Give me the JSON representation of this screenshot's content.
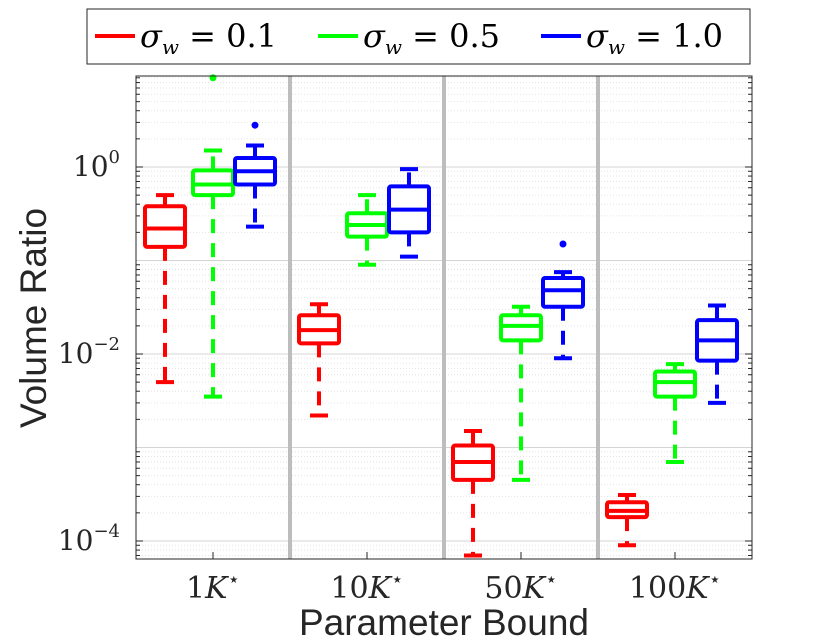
{
  "chart_data": {
    "type": "box",
    "title": "",
    "xlabel": "Parameter Bound",
    "ylabel": "Volume Ratio",
    "yscale": "log",
    "ylim": [
      6e-05,
      10
    ],
    "yticks": [
      {
        "value": 1,
        "base": "10",
        "exp": "0"
      },
      {
        "value": 0.01,
        "base": "10",
        "exp": "−2"
      },
      {
        "value": 0.0001,
        "base": "10",
        "exp": "−4"
      }
    ],
    "categories": [
      {
        "label": "1",
        "sym": "K",
        "sup": "⋆"
      },
      {
        "label": "10",
        "sym": "K",
        "sup": "⋆"
      },
      {
        "label": "50",
        "sym": "K",
        "sup": "⋆"
      },
      {
        "label": "100",
        "sym": "K",
        "sup": "⋆"
      }
    ],
    "legend_position": "top",
    "series": [
      {
        "name": "σw = 0.1",
        "sigma": "σ",
        "sub": "w",
        "eq": "= 0.1",
        "color": "#ff0000",
        "boxes": [
          {
            "whislo": 0.005,
            "q1": 0.14,
            "med": 0.22,
            "q3": 0.38,
            "whishi": 0.5,
            "fliers": []
          },
          {
            "whislo": 0.0022,
            "q1": 0.013,
            "med": 0.018,
            "q3": 0.026,
            "whishi": 0.034,
            "fliers": []
          },
          {
            "whislo": 7e-05,
            "q1": 0.00045,
            "med": 0.0007,
            "q3": 0.00105,
            "whishi": 0.0015,
            "fliers": []
          },
          {
            "whislo": 9e-05,
            "q1": 0.00018,
            "med": 0.00021,
            "q3": 0.00026,
            "whishi": 0.00031,
            "fliers": []
          }
        ]
      },
      {
        "name": "σw = 0.5",
        "sigma": "σ",
        "sub": "w",
        "eq": "= 0.5",
        "color": "#00ff00",
        "boxes": [
          {
            "whislo": 0.0035,
            "q1": 0.5,
            "med": 0.65,
            "q3": 0.92,
            "whishi": 1.5,
            "fliers": [
              9
            ]
          },
          {
            "whislo": 0.09,
            "q1": 0.18,
            "med": 0.24,
            "q3": 0.32,
            "whishi": 0.5,
            "fliers": []
          },
          {
            "whislo": 0.00045,
            "q1": 0.014,
            "med": 0.02,
            "q3": 0.026,
            "whishi": 0.032,
            "fliers": []
          },
          {
            "whislo": 0.0007,
            "q1": 0.0035,
            "med": 0.005,
            "q3": 0.0065,
            "whishi": 0.0078,
            "fliers": []
          }
        ]
      },
      {
        "name": "σw = 1.0",
        "sigma": "σ",
        "sub": "w",
        "eq": "= 1.0",
        "color": "#0000ff",
        "boxes": [
          {
            "whislo": 0.23,
            "q1": 0.65,
            "med": 0.9,
            "q3": 1.25,
            "whishi": 1.7,
            "fliers": [
              2.8
            ]
          },
          {
            "whislo": 0.11,
            "q1": 0.2,
            "med": 0.35,
            "q3": 0.62,
            "whishi": 0.95,
            "fliers": []
          },
          {
            "whislo": 0.009,
            "q1": 0.032,
            "med": 0.048,
            "q3": 0.065,
            "whishi": 0.075,
            "fliers": [
              0.15
            ]
          },
          {
            "whislo": 0.003,
            "q1": 0.0085,
            "med": 0.014,
            "q3": 0.023,
            "whishi": 0.033,
            "fliers": []
          }
        ]
      }
    ]
  }
}
